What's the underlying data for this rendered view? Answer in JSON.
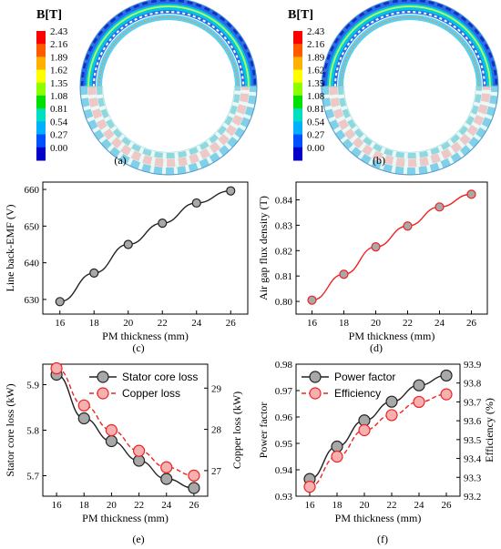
{
  "colorbar": {
    "title": "B[T]",
    "ticks": [
      "2.43",
      "2.16",
      "1.89",
      "1.62",
      "1.35",
      "1.08",
      "0.81",
      "0.54",
      "0.27",
      "0.00"
    ],
    "colors": [
      "#ff0000",
      "#ff5a00",
      "#ffb000",
      "#ffff00",
      "#8cff00",
      "#00e000",
      "#00e0c0",
      "#00b0ff",
      "#0050ff",
      "#0000c8"
    ]
  },
  "captions": [
    "(a)",
    "(b)",
    "(c)",
    "(d)",
    "(e)",
    "(f)"
  ],
  "chart_data": [
    {
      "type": "line",
      "panel": "c",
      "x": [
        16,
        18,
        20,
        22,
        24,
        26
      ],
      "series": [
        {
          "values": [
            629.4,
            637.2,
            645.0,
            650.8,
            656.3,
            659.6
          ],
          "color": "#222222"
        }
      ],
      "xlabel": "PM thickness (mm)",
      "ylabel": "Line back-EMF (V)",
      "xticks": [
        "16",
        "18",
        "20",
        "22",
        "24",
        "26"
      ],
      "yticks": [
        "630",
        "640",
        "650",
        "660"
      ],
      "xlim": [
        15,
        27
      ],
      "ylim": [
        626,
        662
      ]
    },
    {
      "type": "line",
      "panel": "d",
      "x": [
        16,
        18,
        20,
        22,
        24,
        26
      ],
      "series": [
        {
          "values": [
            0.8005,
            0.8107,
            0.8215,
            0.8297,
            0.8372,
            0.8422
          ],
          "color": "#ee2222"
        }
      ],
      "xlabel": "PM thickness (mm)",
      "ylabel": "Air gap flux density (T)",
      "xticks": [
        "16",
        "18",
        "20",
        "22",
        "24",
        "26"
      ],
      "yticks": [
        "0.80",
        "0.81",
        "0.82",
        "0.83",
        "0.84"
      ],
      "xlim": [
        15,
        27
      ],
      "ylim": [
        0.795,
        0.847
      ]
    },
    {
      "type": "line",
      "panel": "e",
      "x": [
        16,
        18,
        20,
        22,
        24,
        26
      ],
      "series": [
        {
          "name": "Stator core loss",
          "axis": "left",
          "values": [
            5.922,
            5.826,
            5.776,
            5.733,
            5.693,
            5.673
          ],
          "color": "#222222"
        },
        {
          "name": "Copper loss",
          "axis": "right",
          "values": [
            29.48,
            28.58,
            27.98,
            27.48,
            27.08,
            26.88
          ],
          "color": "#ee2222"
        }
      ],
      "xlabel": "PM thickness (mm)",
      "ylabel": "Stator core loss (kW)",
      "ylabel_right": "Copper loss (kW)",
      "xticks": [
        "16",
        "18",
        "20",
        "22",
        "24",
        "26"
      ],
      "yticks": [
        "5.7",
        "5.8",
        "5.9"
      ],
      "yticks_right": [
        "27",
        "28",
        "29"
      ],
      "xlim": [
        15,
        27
      ],
      "ylim": [
        5.655,
        5.945
      ],
      "ylim_right": [
        26.38,
        29.58
      ],
      "legend": "top-right"
    },
    {
      "type": "line",
      "panel": "f",
      "x": [
        16,
        18,
        20,
        22,
        24,
        26
      ],
      "series": [
        {
          "name": "Power factor",
          "axis": "left",
          "values": [
            0.9365,
            0.9488,
            0.9587,
            0.9658,
            0.972,
            0.9757
          ],
          "color": "#222222"
        },
        {
          "name": "Efficiency",
          "axis": "right",
          "values": [
            93.25,
            93.41,
            93.55,
            93.63,
            93.7,
            93.74
          ],
          "color": "#ee2222"
        }
      ],
      "xlabel": "PM thickness (mm)",
      "ylabel": "Power factor",
      "ylabel_right": "Efficiency (%)",
      "xticks": [
        "16",
        "18",
        "20",
        "22",
        "24",
        "26"
      ],
      "yticks": [
        "0.93",
        "0.94",
        "0.95",
        "0.96",
        "0.97",
        "0.98"
      ],
      "yticks_right": [
        "93.2",
        "93.3",
        "93.4",
        "93.5",
        "93.6",
        "93.7",
        "93.8",
        "93.9"
      ],
      "xlim": [
        15,
        27
      ],
      "ylim": [
        0.93,
        0.98
      ],
      "ylim_right": [
        93.2,
        93.9
      ],
      "legend": "top-left"
    }
  ]
}
